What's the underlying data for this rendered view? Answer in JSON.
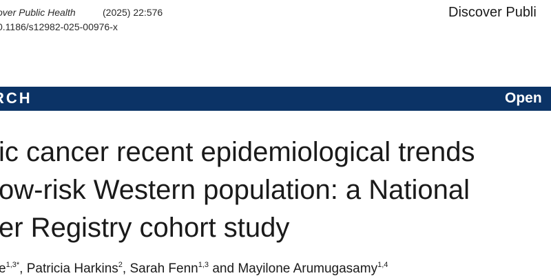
{
  "header": {
    "journal_cite": "over Public Health",
    "volume": "(2025) 22:576",
    "doi": "0.1186/s12982-025-00976-x",
    "brand": "Discover Publi"
  },
  "banner": {
    "article_type": "RCH",
    "access": "Open"
  },
  "title": {
    "lines": [
      "ic cancer recent epidemiological trends",
      "ow-risk Western population: a National",
      "er Registry cohort study"
    ]
  },
  "authors": {
    "a1_name": "e",
    "a1_sup": "1,3*",
    "sep1": ", ",
    "a2_name": "Patricia Harkins",
    "a2_sup": "2",
    "sep2": ", ",
    "a3_name": "Sarah Fenn",
    "a3_sup": "1,3",
    "sep3": " and ",
    "a4_name": "Mayilone Arumugasamy",
    "a4_sup": "1,4"
  },
  "colors": {
    "banner_bg": "#0b3366",
    "banner_text": "#ffffff",
    "body_text": "#1a1a1a"
  }
}
